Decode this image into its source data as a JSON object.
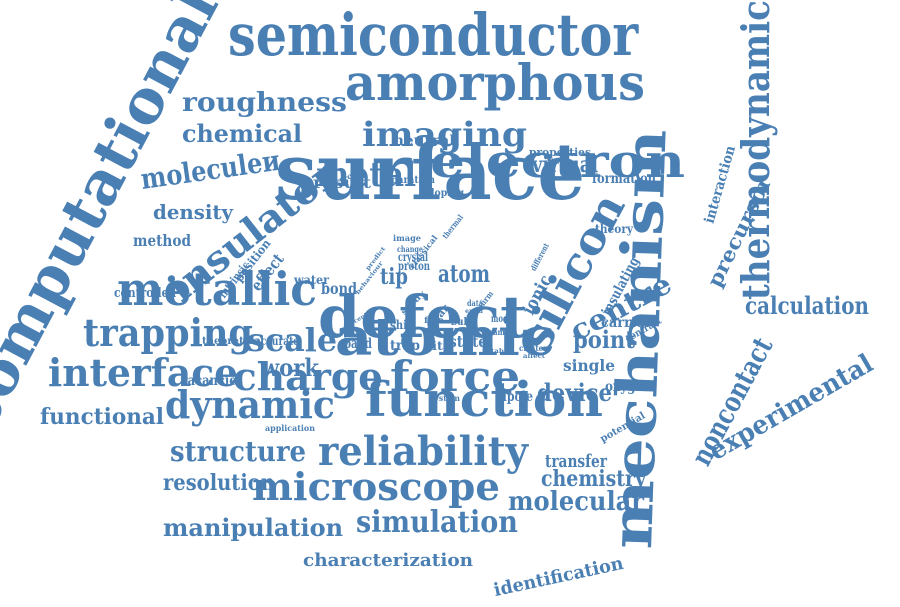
{
  "color": "#4a7fb4",
  "words": [
    {
      "text": "semiconductor"
    },
    {
      "text": "computational"
    },
    {
      "text": "thermodynamic"
    },
    {
      "text": "amorphous"
    },
    {
      "text": "roughness"
    },
    {
      "text": "chemical"
    },
    {
      "text": "neutral"
    },
    {
      "text": "properties"
    },
    {
      "text": "imaging"
    },
    {
      "text": "moleculeи"
    },
    {
      "text": "insulator"
    },
    {
      "text": "metal"
    },
    {
      "text": "electron"
    },
    {
      "text": "mechanism"
    },
    {
      "text": "surface"
    },
    {
      "text": "density"
    },
    {
      "text": "method"
    },
    {
      "text": "virtual"
    },
    {
      "text": "formation"
    },
    {
      "text": "result"
    },
    {
      "text": "doping"
    },
    {
      "text": "separation"
    },
    {
      "text": "electronic"
    },
    {
      "text": "theory"
    },
    {
      "text": "interaction"
    },
    {
      "text": "precursor"
    },
    {
      "text": "defect"
    },
    {
      "text": "metallic"
    },
    {
      "text": "controlled"
    },
    {
      "text": "silicon"
    },
    {
      "text": "centre"
    },
    {
      "text": "calculation"
    },
    {
      "text": "trapping"
    },
    {
      "text": "scale"
    },
    {
      "text": "atomic"
    },
    {
      "text": "point"
    },
    {
      "text": "carrier"
    },
    {
      "text": "noncontact"
    },
    {
      "text": "experimental"
    },
    {
      "text": "interface"
    },
    {
      "text": "charge"
    },
    {
      "text": "force"
    },
    {
      "text": "device"
    },
    {
      "text": "oxygen"
    },
    {
      "text": "single"
    },
    {
      "text": "work"
    },
    {
      "text": "vacancies"
    },
    {
      "text": "functional"
    },
    {
      "text": "dynamic"
    },
    {
      "text": "function"
    },
    {
      "text": "structure"
    },
    {
      "text": "transfer"
    },
    {
      "text": "chemistry"
    },
    {
      "text": "resolution"
    },
    {
      "text": "reliability"
    },
    {
      "text": "microscope"
    },
    {
      "text": "molecular"
    },
    {
      "text": "manipulation"
    },
    {
      "text": "simulation"
    },
    {
      "text": "characterization"
    },
    {
      "text": "identification"
    },
    {
      "text": "tip"
    },
    {
      "text": "atom"
    },
    {
      "text": "bond"
    },
    {
      "text": "water"
    },
    {
      "text": "effect"
    },
    {
      "text": "intrinsic"
    },
    {
      "text": "position"
    },
    {
      "text": "crystal"
    },
    {
      "text": "proton"
    },
    {
      "text": "change"
    },
    {
      "text": "classical"
    },
    {
      "text": "different"
    },
    {
      "text": "ionic"
    },
    {
      "text": "insulating"
    },
    {
      "text": "contrast"
    },
    {
      "text": "band"
    },
    {
      "text": "trap"
    },
    {
      "text": "site"
    },
    {
      "text": "state"
    },
    {
      "text": "shift"
    },
    {
      "text": "bulk"
    },
    {
      "text": "polar"
    },
    {
      "text": "model"
    },
    {
      "text": "sample"
    },
    {
      "text": "cluster"
    },
    {
      "text": "theoretical"
    },
    {
      "text": "accurate"
    },
    {
      "text": "system"
    },
    {
      "text": "dipole"
    },
    {
      "text": "application"
    },
    {
      "text": "potential"
    },
    {
      "text": "film"
    },
    {
      "text": "data"
    },
    {
      "text": "study"
    },
    {
      "text": "center"
    },
    {
      "text": "extra"
    },
    {
      "text": "confirm"
    },
    {
      "text": "predict"
    },
    {
      "text": "stable"
    },
    {
      "text": "affect"
    },
    {
      "text": "thermal"
    },
    {
      "text": "image"
    },
    {
      "text": "behaviour"
    }
  ]
}
